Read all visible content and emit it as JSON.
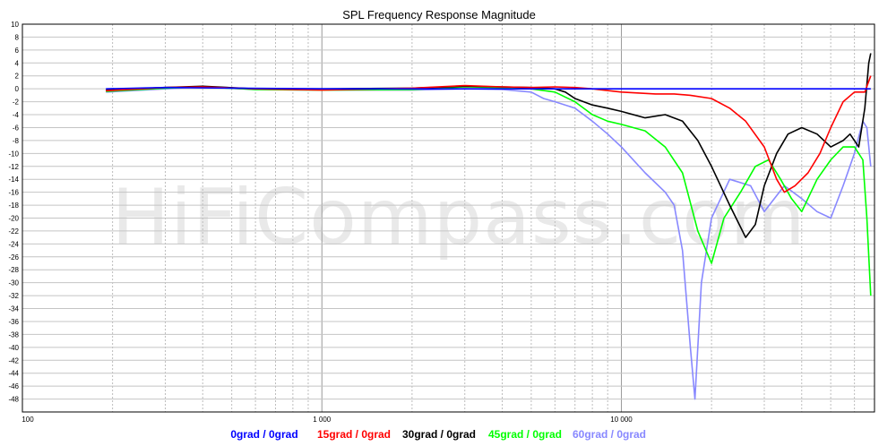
{
  "watermark": "HiFiCompass.com",
  "chart_data": {
    "type": "line",
    "title": "SPL Frequency Response Magnitude",
    "xscale": "log",
    "xlim": [
      100,
      70000
    ],
    "ylim": [
      -50,
      10
    ],
    "grid": true,
    "x_tick_labels": [
      {
        "value": 100,
        "label": "100"
      },
      {
        "value": 1000,
        "label": "1 000"
      },
      {
        "value": 10000,
        "label": "10 000"
      }
    ],
    "y_ticks": [
      10,
      8,
      6,
      4,
      2,
      0,
      -2,
      -4,
      -6,
      -8,
      -10,
      -12,
      -14,
      -16,
      -18,
      -20,
      -22,
      -24,
      -26,
      -28,
      -30,
      -32,
      -34,
      -36,
      -38,
      -40,
      -42,
      -44,
      -46,
      -48
    ],
    "legend_position": "bottom",
    "series": [
      {
        "name": "0grad / 0grad",
        "color": "#0000ff",
        "x": [
          190,
          300,
          500,
          1000,
          2000,
          5000,
          10000,
          20000,
          40000,
          55000,
          68000
        ],
        "y": [
          0,
          0.2,
          0.1,
          0,
          0,
          0,
          0,
          0,
          0,
          0,
          0
        ]
      },
      {
        "name": "15grad / 0grad",
        "color": "#ff0000",
        "x": [
          190,
          300,
          400,
          600,
          1000,
          2000,
          3000,
          4000,
          5000,
          6000,
          7000,
          8000,
          10000,
          13000,
          15000,
          17000,
          20000,
          23000,
          26000,
          30000,
          33000,
          35000,
          38000,
          42000,
          46000,
          50000,
          55000,
          60000,
          65000,
          68000
        ],
        "y": [
          -0.3,
          0.2,
          0.3,
          0,
          -0.2,
          0.1,
          0.5,
          0.3,
          0.2,
          0.3,
          0.2,
          0,
          -0.5,
          -0.8,
          -0.8,
          -1,
          -1.5,
          -3,
          -5,
          -9,
          -14,
          -16,
          -15,
          -13,
          -10,
          -6,
          -2,
          -0.5,
          -0.5,
          2
        ]
      },
      {
        "name": "30grad / 0grad",
        "color": "#000000",
        "x": [
          190,
          300,
          400,
          600,
          1000,
          2000,
          3000,
          4000,
          5000,
          6000,
          6500,
          7000,
          8000,
          9000,
          10000,
          12000,
          14000,
          16000,
          18000,
          20000,
          23000,
          26000,
          28000,
          30000,
          33000,
          36000,
          40000,
          45000,
          50000,
          55000,
          58000,
          62000,
          65000,
          67000,
          68000
        ],
        "y": [
          -0.2,
          0.2,
          0.4,
          0,
          0,
          0.1,
          0.4,
          0.3,
          0.2,
          0,
          -0.5,
          -1.5,
          -2.5,
          -3,
          -3.5,
          -4.5,
          -4,
          -5,
          -8,
          -12,
          -18,
          -23,
          -21,
          -15,
          -10,
          -7,
          -6,
          -7,
          -9,
          -8,
          -7,
          -9,
          -3,
          4,
          5.5
        ]
      },
      {
        "name": "45grad / 0grad",
        "color": "#00ff00",
        "x": [
          190,
          300,
          400,
          600,
          1000,
          2000,
          3000,
          4000,
          5000,
          6000,
          7000,
          8000,
          9000,
          10000,
          12000,
          14000,
          16000,
          18000,
          20000,
          22000,
          25000,
          28000,
          31000,
          34000,
          37000,
          40000,
          45000,
          50000,
          55000,
          60000,
          64000,
          66000,
          68000
        ],
        "y": [
          -0.4,
          0.1,
          0.3,
          -0.1,
          -0.2,
          -0.1,
          0.3,
          0.2,
          0,
          -0.5,
          -2,
          -4,
          -5,
          -5.5,
          -6.5,
          -9,
          -13,
          -22,
          -27,
          -20,
          -16,
          -12,
          -11,
          -14,
          -17,
          -19,
          -14,
          -11,
          -9,
          -9,
          -11,
          -20,
          -32
        ]
      },
      {
        "name": "60grad / 0grad",
        "color": "#8888ff",
        "x": [
          190,
          300,
          400,
          600,
          1000,
          2000,
          3000,
          4000,
          5000,
          5500,
          6000,
          7000,
          8000,
          9000,
          10000,
          12000,
          14000,
          15000,
          16000,
          17000,
          17600,
          18500,
          20000,
          23000,
          27000,
          30000,
          35000,
          40000,
          45000,
          50000,
          55000,
          60000,
          64000,
          66000,
          68000
        ],
        "y": [
          -0.5,
          0,
          0.3,
          -0.1,
          -0.2,
          -0.2,
          0,
          -0.1,
          -0.5,
          -1.5,
          -2,
          -3,
          -5,
          -7,
          -9,
          -13,
          -16,
          -18,
          -25,
          -40,
          -48,
          -30,
          -20,
          -14,
          -15,
          -19,
          -15,
          -17,
          -19,
          -20,
          -15,
          -10,
          -5,
          -6,
          -12
        ]
      }
    ]
  }
}
